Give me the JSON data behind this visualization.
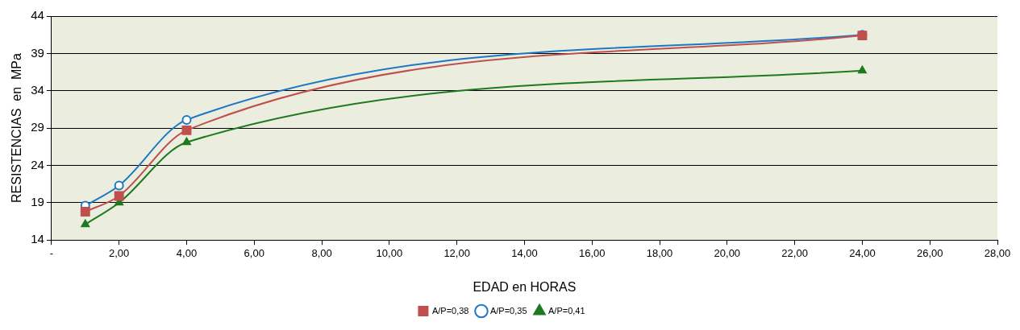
{
  "chart_data": {
    "type": "line",
    "xlabel": "EDAD en HORAS",
    "ylabel": "RESISTENCIAS  en  MPa",
    "xlim": [
      0,
      28
    ],
    "xticks": [
      {
        "value": 0,
        "label": "-"
      },
      {
        "value": 2,
        "label": "2,00"
      },
      {
        "value": 4,
        "label": "4,00"
      },
      {
        "value": 6,
        "label": "6,00"
      },
      {
        "value": 8,
        "label": "8,00"
      },
      {
        "value": 10,
        "label": "10,00"
      },
      {
        "value": 12,
        "label": "12,00"
      },
      {
        "value": 14,
        "label": "14,00"
      },
      {
        "value": 16,
        "label": "16,00"
      },
      {
        "value": 18,
        "label": "18,00"
      },
      {
        "value": 20,
        "label": "20,00"
      },
      {
        "value": 22,
        "label": "22,00"
      },
      {
        "value": 24,
        "label": "24,00"
      },
      {
        "value": 26,
        "label": "26,00"
      },
      {
        "value": 28,
        "label": "28,00"
      }
    ],
    "ylim": [
      14,
      44
    ],
    "yticks": [
      14,
      19,
      24,
      29,
      34,
      39,
      44
    ],
    "grid": "y",
    "legend": "bottom",
    "x": [
      1,
      2,
      4,
      24
    ],
    "series": [
      {
        "name": "A/P=0,35",
        "color": "#1f77c4",
        "marker": "circle",
        "values": [
          18.6,
          21.3,
          30.1,
          41.5
        ]
      },
      {
        "name": "A/P=0,38",
        "color": "#c0504d",
        "marker": "square",
        "values": [
          17.8,
          19.9,
          28.7,
          41.4
        ]
      },
      {
        "name": "A/P=0,41",
        "color": "#1e7a1e",
        "marker": "triangle",
        "values": [
          16.1,
          19.0,
          27.1,
          36.7
        ]
      }
    ]
  }
}
